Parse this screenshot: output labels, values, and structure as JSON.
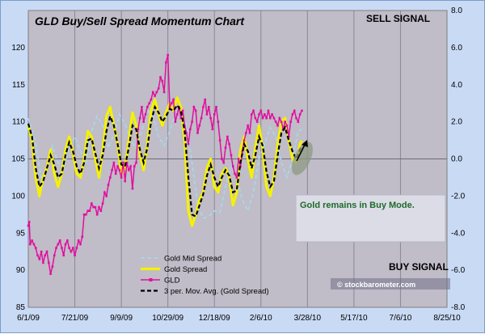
{
  "chart_data": {
    "type": "line",
    "title": "GLD Buy/Sell Spread Momentum Chart",
    "x_ticks": [
      "6/1/09",
      "7/21/09",
      "9/9/09",
      "10/29/09",
      "12/18/09",
      "2/6/10",
      "3/28/10",
      "5/17/10",
      "7/6/10",
      "8/25/10"
    ],
    "y_left": {
      "ticks": [
        85,
        90,
        95,
        100,
        105,
        110,
        115,
        120
      ],
      "range": [
        85,
        125
      ]
    },
    "y_right": {
      "ticks": [
        "-8.0",
        "-6.0",
        "-4.0",
        "-2.0",
        "0.0",
        "2.0",
        "4.0",
        "6.0",
        "8.0"
      ],
      "range": [
        -8,
        8
      ]
    },
    "sell_signal_label": "SELL SIGNAL",
    "buy_signal_label": "BUY SIGNAL",
    "annotation": "Gold remains in Buy Mode.",
    "watermark": "© stockbarometer.com",
    "legend": [
      "Gold Mid Spread",
      "Gold  Spread",
      "GLD",
      "3 per. Mov. Avg. (Gold  Spread)"
    ],
    "series": [
      {
        "name": "GLD",
        "axis": "left",
        "color": "#e0109e",
        "t": [
          0,
          1,
          2,
          4,
          6,
          8,
          10,
          12,
          14,
          16,
          18,
          20,
          22,
          24,
          26,
          28,
          30,
          32,
          34,
          36,
          38,
          40,
          42,
          44,
          46,
          48,
          50,
          52,
          54,
          56,
          58,
          60,
          62,
          64,
          66,
          68,
          70,
          72,
          74,
          76,
          78,
          80,
          82,
          84,
          86,
          88,
          90,
          92,
          94,
          96,
          98,
          100,
          102,
          104,
          106,
          108,
          110,
          112,
          114,
          116,
          118,
          120,
          122,
          124,
          126,
          128,
          130,
          132,
          134,
          136,
          138,
          140,
          142,
          144,
          146,
          148,
          150,
          152,
          154,
          156,
          158,
          160,
          162,
          164,
          166,
          168,
          170,
          172,
          174,
          176,
          178,
          180,
          182,
          184,
          186,
          188,
          190,
          192,
          194,
          196,
          198,
          200,
          202,
          204,
          206,
          208,
          210,
          212,
          214,
          216,
          218,
          220,
          222,
          224,
          226,
          228,
          230,
          232,
          234,
          236,
          238,
          240,
          242,
          244,
          246,
          248,
          250,
          252,
          254,
          256,
          258,
          260,
          262,
          264,
          266,
          268,
          270,
          272,
          274,
          276,
          278,
          280,
          282,
          284,
          286,
          288,
          290,
          292,
          294
        ],
        "v": [
          96.0,
          96.5,
          93.5,
          94.0,
          93.5,
          93.0,
          92.0,
          91.5,
          92.5,
          91.0,
          92.0,
          92.5,
          91.0,
          89.5,
          90.5,
          92.0,
          93.0,
          93.5,
          94.0,
          93.0,
          92.0,
          93.5,
          94.0,
          93.0,
          92.5,
          93.0,
          92.0,
          93.0,
          94.0,
          93.5,
          94.5,
          97.5,
          97.5,
          98.0,
          98.0,
          99.0,
          98.5,
          98.5,
          97.5,
          98.5,
          98.0,
          99.0,
          100.5,
          100.0,
          101.5,
          102.5,
          103.5,
          104.5,
          103.0,
          104.0,
          103.5,
          102.5,
          104.5,
          102.0,
          104.5,
          103.5,
          104.0,
          101.0,
          104.0,
          104.5,
          109.0,
          110.5,
          112.0,
          110.0,
          111.0,
          112.0,
          112.5,
          113.0,
          114.0,
          113.5,
          114.0,
          114.5,
          116.0,
          115.5,
          114.0,
          118.0,
          119.0,
          112.0,
          112.5,
          113.0,
          110.0,
          111.0,
          112.0,
          110.5,
          111.5,
          109.5,
          108.5,
          107.0,
          109.0,
          110.0,
          112.0,
          111.5,
          108.5,
          109.5,
          110.5,
          112.0,
          113.0,
          111.0,
          112.0,
          110.5,
          109.0,
          111.0,
          112.0,
          110.0,
          107.5,
          105.0,
          104.5,
          106.5,
          108.0,
          107.0,
          105.5,
          104.0,
          103.0,
          102.5,
          105.0,
          104.0,
          106.0,
          107.5,
          108.5,
          109.5,
          108.5,
          111.0,
          111.5,
          110.5,
          110.0,
          111.0,
          111.5,
          110.5,
          111.0,
          110.5,
          111.5,
          110.5,
          111.0,
          110.5,
          110.0,
          109.5,
          110.5,
          110.0,
          109.0,
          110.0,
          109.5,
          108.0,
          110.0,
          111.0,
          111.5,
          110.5,
          110.0,
          111.0,
          111.5
        ]
      },
      {
        "name": "Gold Mid Spread",
        "axis": "right",
        "color": "#a8d8e8",
        "t": [
          0,
          8,
          14,
          20,
          26,
          32,
          38,
          44,
          50,
          56,
          62,
          68,
          74,
          80,
          86,
          92,
          98,
          104,
          110,
          116,
          122,
          128,
          134,
          140,
          146,
          152,
          158,
          164,
          170,
          176,
          182,
          188,
          194,
          200,
          206,
          212,
          218,
          224,
          230,
          236,
          242,
          248,
          254,
          260,
          266,
          272,
          278,
          284,
          290,
          294
        ],
        "v": [
          2.2,
          0.8,
          -1.0,
          -0.4,
          0.7,
          -0.2,
          -0.5,
          0.6,
          1.2,
          0.4,
          -0.2,
          1.5,
          2.3,
          1.8,
          0.6,
          1.3,
          2.4,
          1.9,
          1.0,
          0.6,
          1.5,
          2.6,
          2.3,
          1.2,
          0.7,
          1.5,
          2.4,
          2.5,
          1.8,
          -0.2,
          -2.5,
          -3.2,
          -3.1,
          -2.8,
          -2.9,
          -1.5,
          -0.4,
          -1.0,
          -2.2,
          -2.8,
          -1.8,
          0.0,
          0.8,
          1.7,
          1.2,
          -0.2,
          -1.0,
          0.0,
          1.5,
          1.6
        ]
      },
      {
        "name": "Gold  Spread",
        "axis": "right",
        "color": "#f5f200",
        "t": [
          0,
          4,
          8,
          12,
          16,
          20,
          24,
          28,
          32,
          36,
          40,
          44,
          48,
          52,
          56,
          60,
          64,
          68,
          72,
          76,
          80,
          84,
          88,
          92,
          96,
          100,
          104,
          108,
          112,
          116,
          120,
          124,
          128,
          132,
          136,
          140,
          144,
          148,
          152,
          156,
          160,
          164,
          168,
          172,
          176,
          180,
          184,
          188,
          192,
          196,
          200,
          204,
          208,
          212,
          216,
          220,
          224,
          228,
          232,
          236,
          240,
          244,
          248,
          252,
          256,
          260,
          264,
          268,
          272,
          276,
          280,
          284,
          288,
          292,
          294
        ],
        "v": [
          1.8,
          1.0,
          -1.0,
          -2.0,
          -1.0,
          -0.5,
          0.5,
          -0.8,
          -1.5,
          -0.8,
          0.5,
          1.2,
          0.3,
          -0.8,
          -1.0,
          0.0,
          1.5,
          1.2,
          0.0,
          -1.0,
          0.5,
          2.3,
          2.8,
          1.8,
          0.8,
          -0.8,
          -0.5,
          1.0,
          2.5,
          1.8,
          0.2,
          -0.6,
          0.8,
          2.6,
          3.2,
          2.4,
          1.8,
          2.5,
          3.0,
          2.6,
          3.3,
          2.8,
          1.0,
          -2.8,
          -3.6,
          -3.0,
          -2.2,
          -1.8,
          -0.5,
          0.0,
          -1.5,
          -1.8,
          -0.8,
          -0.5,
          -1.0,
          -2.5,
          -1.8,
          0.5,
          1.2,
          0.0,
          -1.0,
          0.6,
          1.8,
          0.5,
          -1.5,
          -2.0,
          -1.0,
          0.8,
          2.0,
          2.2,
          1.0,
          0.0,
          -0.2,
          0.8,
          1.0
        ]
      },
      {
        "name": "3 per. Mov. Avg. (Gold  Spread)",
        "axis": "right",
        "color": "#000000",
        "t": [
          0,
          4,
          8,
          12,
          16,
          20,
          24,
          28,
          32,
          36,
          40,
          44,
          48,
          52,
          56,
          60,
          64,
          68,
          72,
          76,
          80,
          84,
          88,
          92,
          96,
          100,
          104,
          108,
          112,
          116,
          120,
          124,
          128,
          132,
          136,
          140,
          144,
          148,
          152,
          156,
          160,
          164,
          168,
          172,
          176,
          180,
          184,
          188,
          192,
          196,
          200,
          204,
          208,
          212,
          216,
          220,
          224,
          228,
          232,
          236,
          240,
          244,
          248,
          252,
          256,
          260,
          264,
          268,
          272,
          276,
          280,
          284,
          288,
          292,
          294
        ],
        "v": [
          1.9,
          1.2,
          -0.5,
          -1.5,
          -1.2,
          -0.5,
          0.2,
          -0.3,
          -1.0,
          -0.8,
          0.2,
          0.9,
          0.4,
          -0.4,
          -0.8,
          -0.2,
          1.0,
          1.1,
          0.3,
          -0.5,
          0.2,
          1.5,
          2.3,
          1.8,
          0.8,
          -0.3,
          -0.4,
          0.6,
          1.8,
          1.6,
          0.5,
          -0.2,
          0.6,
          2.0,
          2.8,
          2.5,
          2.0,
          2.3,
          2.7,
          2.6,
          2.9,
          2.6,
          1.5,
          -1.0,
          -3.0,
          -3.1,
          -2.5,
          -1.9,
          -0.9,
          -0.3,
          -1.0,
          -1.5,
          -1.0,
          -0.6,
          -0.9,
          -1.8,
          -1.7,
          -0.2,
          0.8,
          0.4,
          -0.5,
          0.2,
          1.2,
          0.7,
          -0.7,
          -1.5,
          -1.2,
          0.2,
          1.4,
          1.7,
          1.0,
          0.4,
          0.0,
          0.5,
          0.7
        ]
      }
    ]
  }
}
